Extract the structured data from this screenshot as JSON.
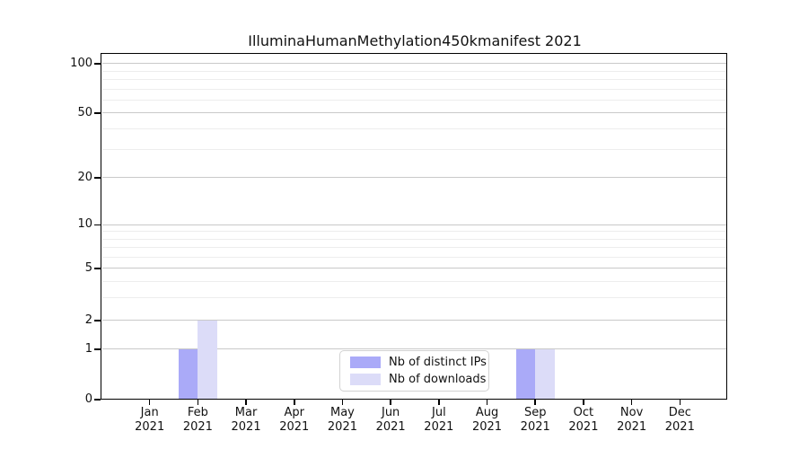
{
  "title": "IlluminaHumanMethylation450kmanifest 2021",
  "chart_data": {
    "type": "bar",
    "title": "IlluminaHumanMethylation450kmanifest 2021",
    "categories": [
      "Jan 2021",
      "Feb 2021",
      "Mar 2021",
      "Apr 2021",
      "May 2021",
      "Jun 2021",
      "Jul 2021",
      "Aug 2021",
      "Sep 2021",
      "Oct 2021",
      "Nov 2021",
      "Dec 2021"
    ],
    "series": [
      {
        "name": "Nb of distinct IPs",
        "color": "#aaaaf8",
        "values": [
          0,
          1,
          0,
          0,
          0,
          0,
          0,
          0,
          1,
          0,
          0,
          0
        ]
      },
      {
        "name": "Nb of downloads",
        "color": "#dcdcf8",
        "values": [
          0,
          2,
          0,
          0,
          0,
          0,
          0,
          0,
          1,
          0,
          0,
          0
        ]
      }
    ],
    "xlabel": "",
    "ylabel": "",
    "yscale": "log-like (linear below 1)",
    "y_ticks": [
      100,
      50,
      20,
      10,
      5,
      2,
      1,
      0
    ],
    "y_minor_gridlines": [
      90,
      80,
      70,
      60,
      40,
      30,
      9,
      8,
      7,
      6,
      4,
      3
    ],
    "ylim": [
      0,
      115
    ],
    "grid": "horizontal major and minor gridlines",
    "legend_position": "inside bottom-center"
  },
  "colors": {
    "bar_distinct_ips": "#aaaaf8",
    "bar_downloads": "#dcdcf8",
    "major_grid": "#c9c9c9",
    "minor_grid": "#ededed",
    "axis": "#000000",
    "text": "#111111",
    "background": "#ffffff"
  }
}
